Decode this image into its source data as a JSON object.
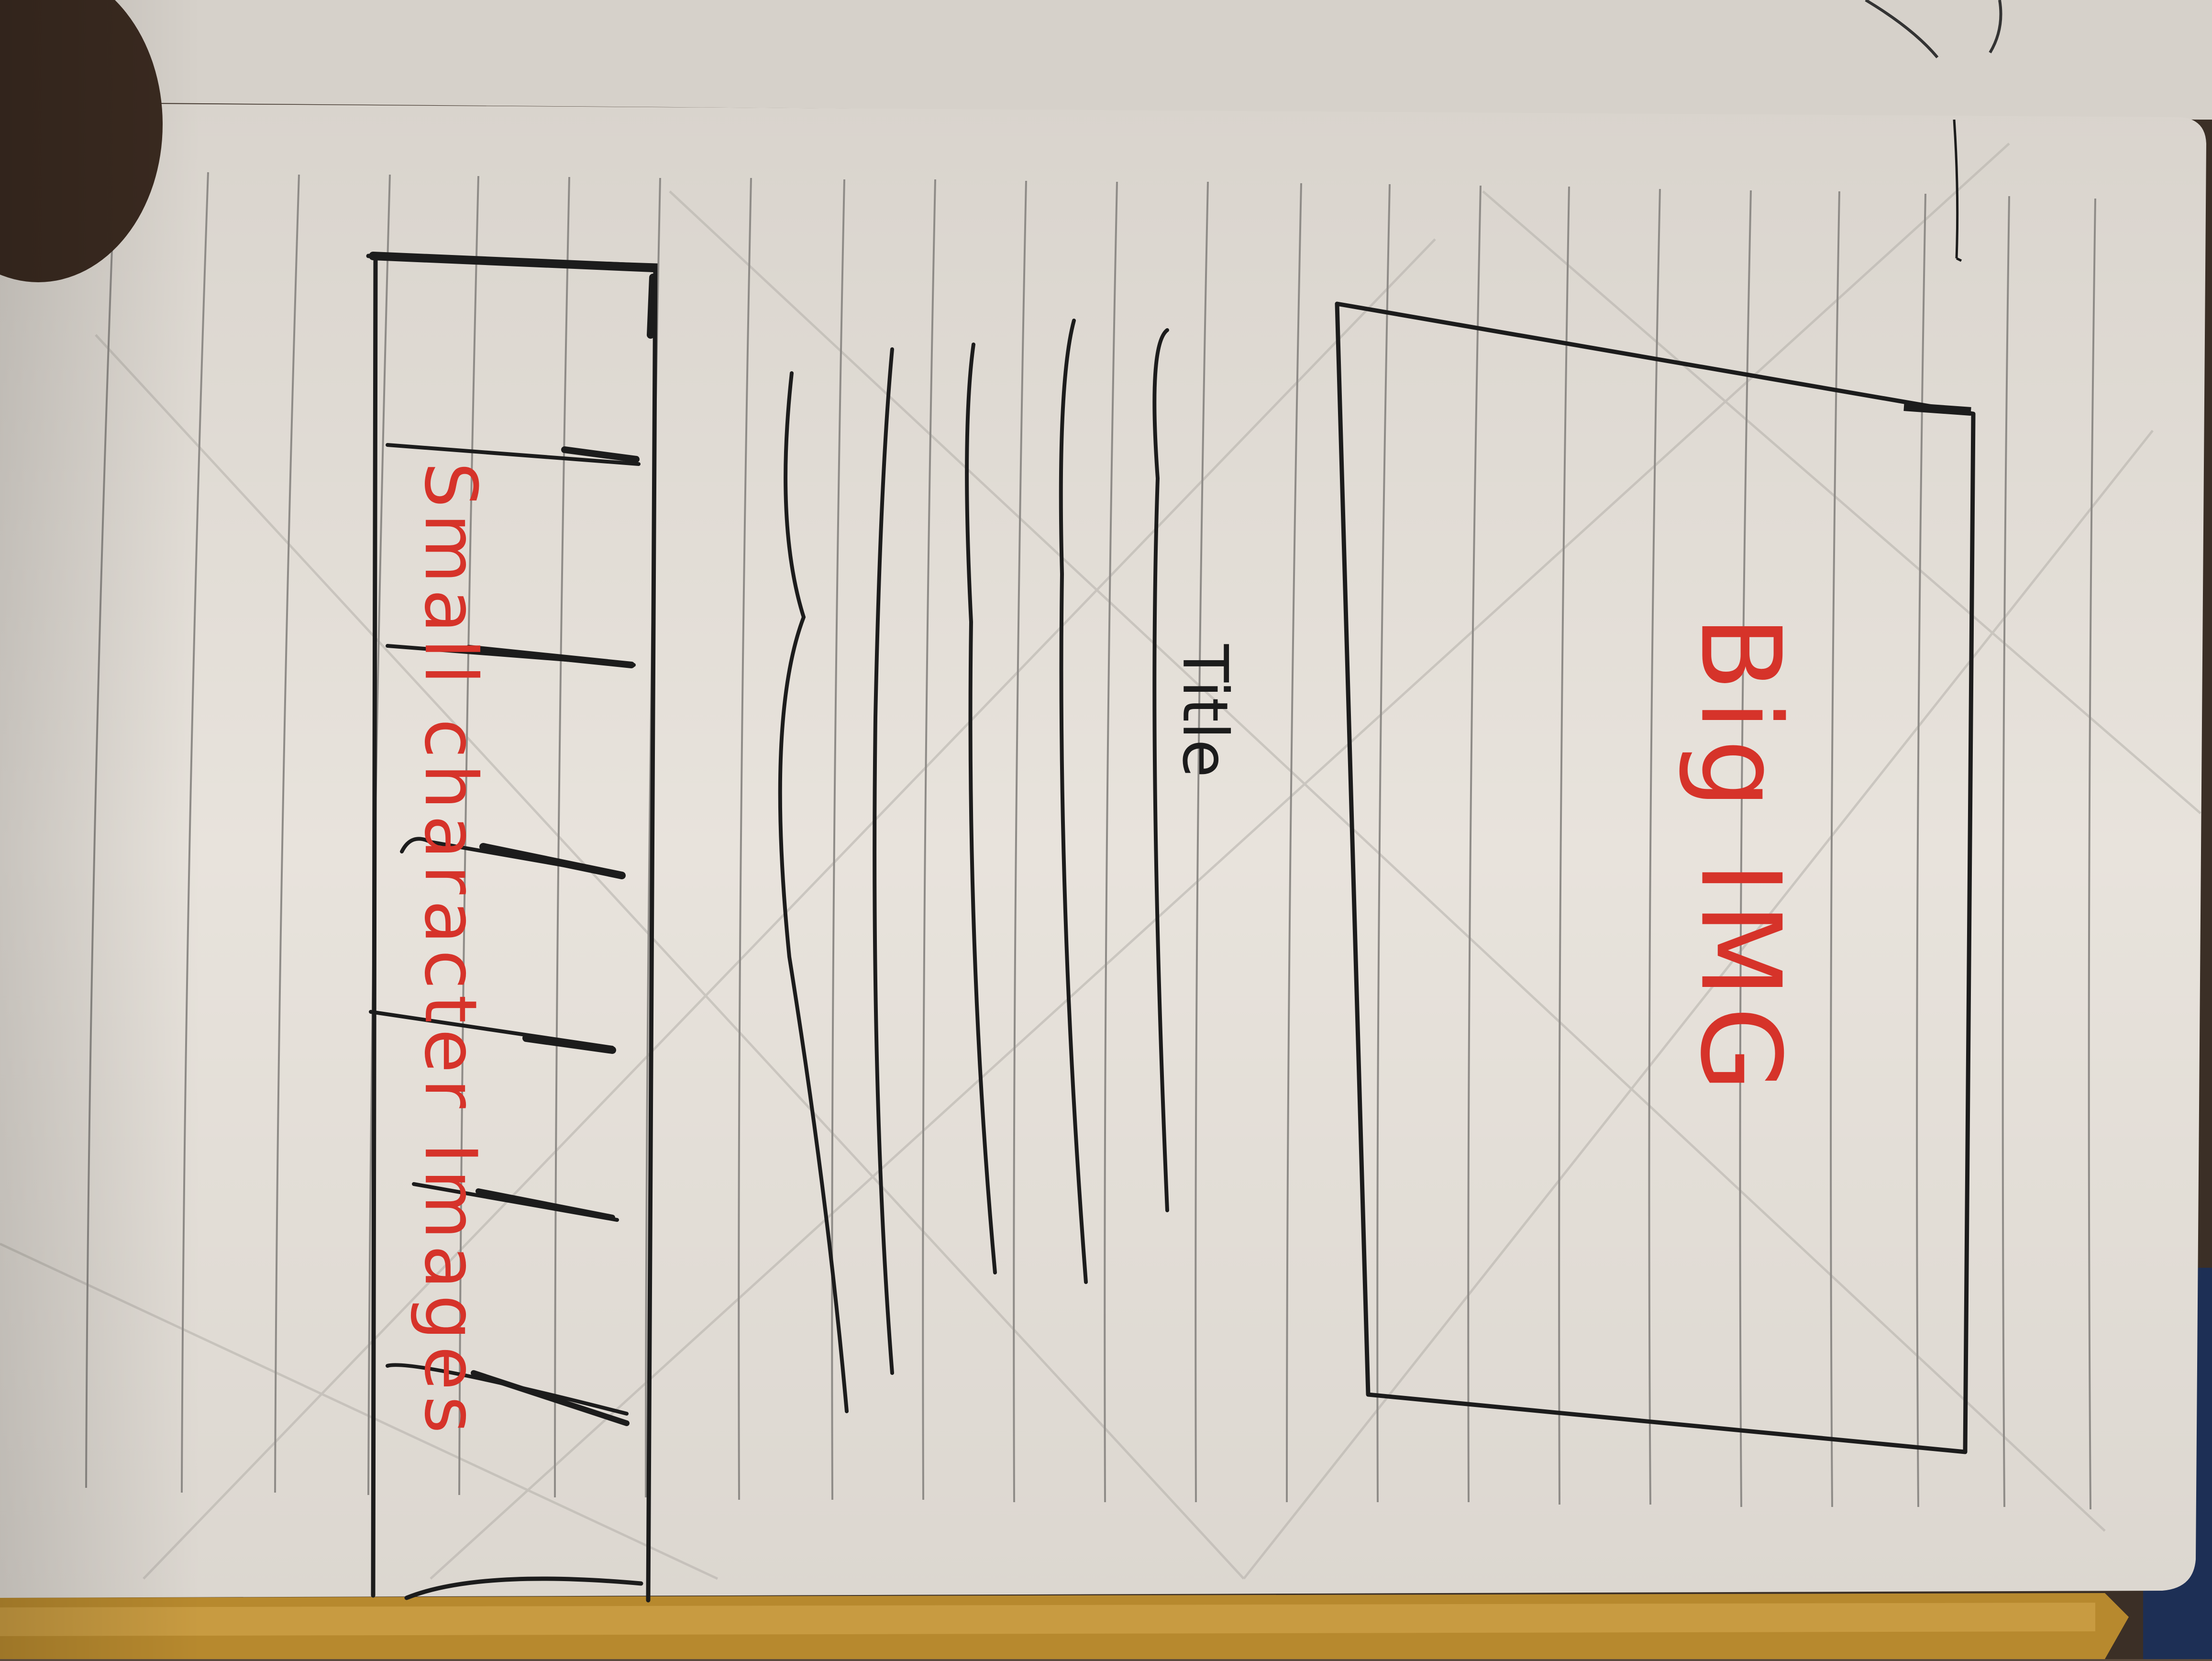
{
  "sketch": {
    "hero": {
      "label": "Big IMG"
    },
    "title": {
      "label": "Title"
    },
    "gallery": {
      "label": "Small character Images",
      "thumbnail_count": 6
    },
    "text_line_count": 5
  },
  "colors": {
    "paper": "#e6e1da",
    "rule": "#8f8c88",
    "ink": "#1c1c1c",
    "red_ink": "#d6332a",
    "background": "#5a4a3c"
  }
}
